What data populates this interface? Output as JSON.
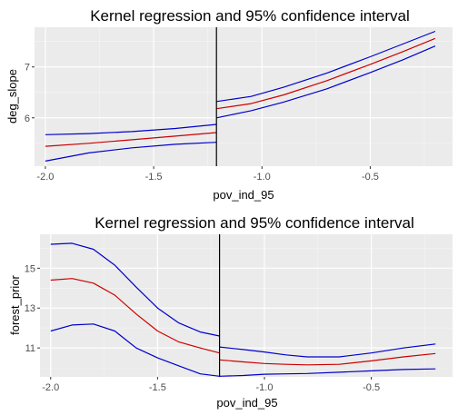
{
  "chart_data": [
    {
      "type": "line",
      "title": "Kernel regression and 95% confidence interval",
      "xlabel": "pov_ind_95",
      "ylabel": "deg_slope",
      "xlim": [
        -2.05,
        -0.12
      ],
      "ylim": [
        5.05,
        7.78
      ],
      "x_ticks": [
        -2.0,
        -1.5,
        -1.0,
        -0.5
      ],
      "x_tick_labels": [
        "-2.0",
        "-1.5",
        "-1.0",
        "-0.5"
      ],
      "y_ticks": [
        6,
        7
      ],
      "y_tick_labels": [
        "6",
        "7"
      ],
      "threshold_x": -1.21,
      "grid": true,
      "series": [
        {
          "role": "upper",
          "color": "#0000CC",
          "segments": [
            [
              [
                -2.0,
                5.67
              ],
              [
                -1.8,
                5.69
              ],
              [
                -1.6,
                5.73
              ],
              [
                -1.4,
                5.79
              ],
              [
                -1.21,
                5.87
              ]
            ],
            [
              [
                -1.21,
                6.32
              ],
              [
                -1.05,
                6.42
              ],
              [
                -0.9,
                6.6
              ],
              [
                -0.7,
                6.88
              ],
              [
                -0.5,
                7.2
              ],
              [
                -0.35,
                7.45
              ],
              [
                -0.2,
                7.7
              ]
            ]
          ]
        },
        {
          "role": "estimate",
          "color": "#CC0000",
          "segments": [
            [
              [
                -2.0,
                5.44
              ],
              [
                -1.8,
                5.5
              ],
              [
                -1.6,
                5.57
              ],
              [
                -1.4,
                5.64
              ],
              [
                -1.21,
                5.71
              ]
            ],
            [
              [
                -1.21,
                6.18
              ],
              [
                -1.05,
                6.28
              ],
              [
                -0.9,
                6.45
              ],
              [
                -0.7,
                6.73
              ],
              [
                -0.5,
                7.05
              ],
              [
                -0.35,
                7.3
              ],
              [
                -0.2,
                7.56
              ]
            ]
          ]
        },
        {
          "role": "lower",
          "color": "#0000CC",
          "segments": [
            [
              [
                -2.0,
                5.15
              ],
              [
                -1.9,
                5.23
              ],
              [
                -1.8,
                5.31
              ],
              [
                -1.6,
                5.41
              ],
              [
                -1.4,
                5.48
              ],
              [
                -1.21,
                5.52
              ]
            ],
            [
              [
                -1.21,
                6.0
              ],
              [
                -1.05,
                6.14
              ],
              [
                -0.9,
                6.31
              ],
              [
                -0.7,
                6.57
              ],
              [
                -0.5,
                6.89
              ],
              [
                -0.35,
                7.14
              ],
              [
                -0.2,
                7.41
              ]
            ]
          ]
        }
      ]
    },
    {
      "type": "line",
      "title": "Kernel regression and 95% confidence interval",
      "xlabel": "pov_ind_95",
      "ylabel": "forest_prior",
      "xlim": [
        -2.05,
        -0.12
      ],
      "ylim": [
        9.55,
        16.7
      ],
      "x_ticks": [
        -2.0,
        -1.5,
        -1.0,
        -0.5
      ],
      "x_tick_labels": [
        "-2.0",
        "-1.5",
        "-1.0",
        "-0.5"
      ],
      "y_ticks": [
        11,
        13,
        15
      ],
      "y_tick_labels": [
        "11",
        "13",
        "15"
      ],
      "threshold_x": -1.21,
      "grid": true,
      "series": [
        {
          "role": "upper",
          "color": "#0000CC",
          "segments": [
            [
              [
                -2.0,
                16.2
              ],
              [
                -1.9,
                16.25
              ],
              [
                -1.8,
                15.95
              ],
              [
                -1.7,
                15.15
              ],
              [
                -1.6,
                14.05
              ],
              [
                -1.5,
                13.0
              ],
              [
                -1.4,
                12.25
              ],
              [
                -1.3,
                11.8
              ],
              [
                -1.21,
                11.6
              ]
            ],
            [
              [
                -1.21,
                11.05
              ],
              [
                -1.1,
                10.92
              ],
              [
                -1.0,
                10.8
              ],
              [
                -0.9,
                10.65
              ],
              [
                -0.8,
                10.55
              ],
              [
                -0.65,
                10.55
              ],
              [
                -0.5,
                10.75
              ],
              [
                -0.35,
                11.0
              ],
              [
                -0.2,
                11.2
              ]
            ]
          ]
        },
        {
          "role": "estimate",
          "color": "#CC0000",
          "segments": [
            [
              [
                -2.0,
                14.4
              ],
              [
                -1.9,
                14.48
              ],
              [
                -1.8,
                14.25
              ],
              [
                -1.7,
                13.65
              ],
              [
                -1.6,
                12.7
              ],
              [
                -1.5,
                11.85
              ],
              [
                -1.4,
                11.3
              ],
              [
                -1.3,
                11.0
              ],
              [
                -1.21,
                10.75
              ]
            ],
            [
              [
                -1.21,
                10.4
              ],
              [
                -1.1,
                10.3
              ],
              [
                -1.0,
                10.22
              ],
              [
                -0.9,
                10.18
              ],
              [
                -0.8,
                10.15
              ],
              [
                -0.65,
                10.18
              ],
              [
                -0.5,
                10.35
              ],
              [
                -0.35,
                10.55
              ],
              [
                -0.2,
                10.72
              ]
            ]
          ]
        },
        {
          "role": "lower",
          "color": "#0000CC",
          "segments": [
            [
              [
                -2.0,
                11.85
              ],
              [
                -1.9,
                12.15
              ],
              [
                -1.8,
                12.2
              ],
              [
                -1.7,
                11.85
              ],
              [
                -1.6,
                11.0
              ],
              [
                -1.5,
                10.5
              ],
              [
                -1.4,
                10.1
              ],
              [
                -1.3,
                9.7
              ],
              [
                -1.21,
                9.58
              ]
            ],
            [
              [
                -1.21,
                9.58
              ],
              [
                -1.1,
                9.62
              ],
              [
                -1.0,
                9.68
              ],
              [
                -0.9,
                9.7
              ],
              [
                -0.8,
                9.72
              ],
              [
                -0.65,
                9.78
              ],
              [
                -0.5,
                9.85
              ],
              [
                -0.35,
                9.92
              ],
              [
                -0.2,
                9.95
              ]
            ]
          ]
        }
      ]
    }
  ]
}
